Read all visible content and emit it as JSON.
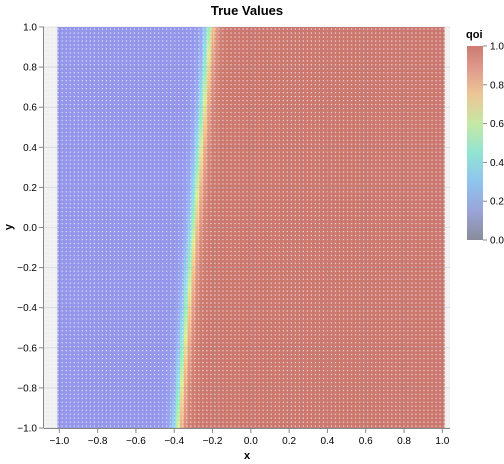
{
  "chart_data": {
    "type": "heatmap",
    "title": "True Values",
    "xlabel": "x",
    "ylabel": "y",
    "xlim": [
      -1.08,
      1.04
    ],
    "ylim": [
      -1.0,
      1.0
    ],
    "x_ticks": [
      "−1.0",
      "−0.8",
      "−0.6",
      "−0.4",
      "−0.2",
      "0.0",
      "0.2",
      "0.4",
      "0.6",
      "0.8",
      "1.0"
    ],
    "y_ticks": [
      "−1.0",
      "−0.8",
      "−0.6",
      "−0.4",
      "−0.2",
      "0.0",
      "0.2",
      "0.4",
      "0.6",
      "0.8",
      "1.0"
    ],
    "grid": true,
    "grid_points": {
      "x_range": [
        -1.0,
        1.0
      ],
      "y_range": [
        -1.0,
        1.0
      ],
      "count_per_axis": 101
    },
    "field": {
      "description_of_values": "qoi transitions from 0 (left) to 1 (right) across a slanted band",
      "transition_center_at_y_min": -0.39,
      "transition_center_at_y_max": -0.22,
      "transition_half_width": 0.04
    },
    "legend": {
      "title": "qoi",
      "placement": "top-right",
      "ticks": [
        "0.0",
        "0.2",
        "0.4",
        "0.6",
        "0.8",
        "1.0"
      ],
      "tick_values": [
        0.0,
        0.2,
        0.4,
        0.6,
        0.8,
        1.0
      ]
    },
    "colormap": {
      "stops": [
        {
          "v": 0.0,
          "color": "#9496ec"
        },
        {
          "v": 0.18,
          "color": "#9ab4f4"
        },
        {
          "v": 0.35,
          "color": "#8edcec"
        },
        {
          "v": 0.5,
          "color": "#94eebc"
        },
        {
          "v": 0.65,
          "color": "#dcec94"
        },
        {
          "v": 0.78,
          "color": "#f4c28a"
        },
        {
          "v": 0.9,
          "color": "#e49c86"
        },
        {
          "v": 1.0,
          "color": "#cc786e"
        }
      ],
      "legend_stops": [
        {
          "v": 0.0,
          "color": "#8a8c9a"
        },
        {
          "v": 0.15,
          "color": "#9aa4d8"
        },
        {
          "v": 0.3,
          "color": "#8ec4ee"
        },
        {
          "v": 0.45,
          "color": "#92e4d2"
        },
        {
          "v": 0.6,
          "color": "#c6e8a4"
        },
        {
          "v": 0.75,
          "color": "#ecc696"
        },
        {
          "v": 0.88,
          "color": "#e09c8c"
        },
        {
          "v": 1.0,
          "color": "#cc7a72"
        }
      ]
    }
  }
}
